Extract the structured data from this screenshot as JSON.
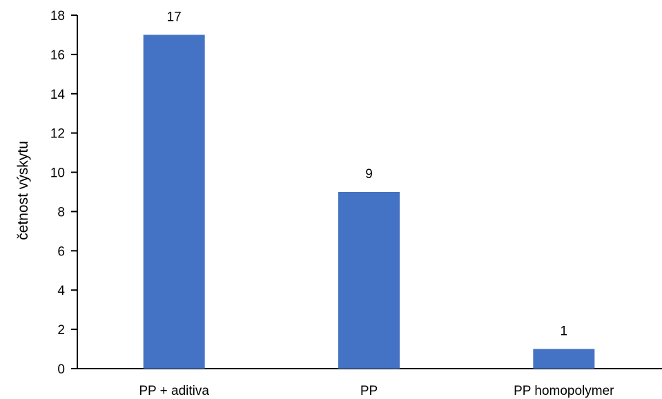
{
  "chart_data": {
    "type": "bar",
    "categories": [
      "PP + aditiva",
      "PP",
      "PP homopolymer"
    ],
    "values": [
      17,
      9,
      1
    ],
    "data_labels": [
      "17",
      "9",
      "1"
    ],
    "title": "",
    "xlabel": "",
    "ylabel": "četnost výskytu",
    "ylim": [
      0,
      18
    ],
    "yticks": [
      0,
      2,
      4,
      6,
      8,
      10,
      12,
      14,
      16,
      18
    ],
    "ytick_labels": [
      "0",
      "2",
      "4",
      "6",
      "8",
      "10",
      "12",
      "14",
      "16",
      "18"
    ],
    "grid": false,
    "legend": "none",
    "bar_color": "#4472C4",
    "axis_color": "#000000"
  }
}
